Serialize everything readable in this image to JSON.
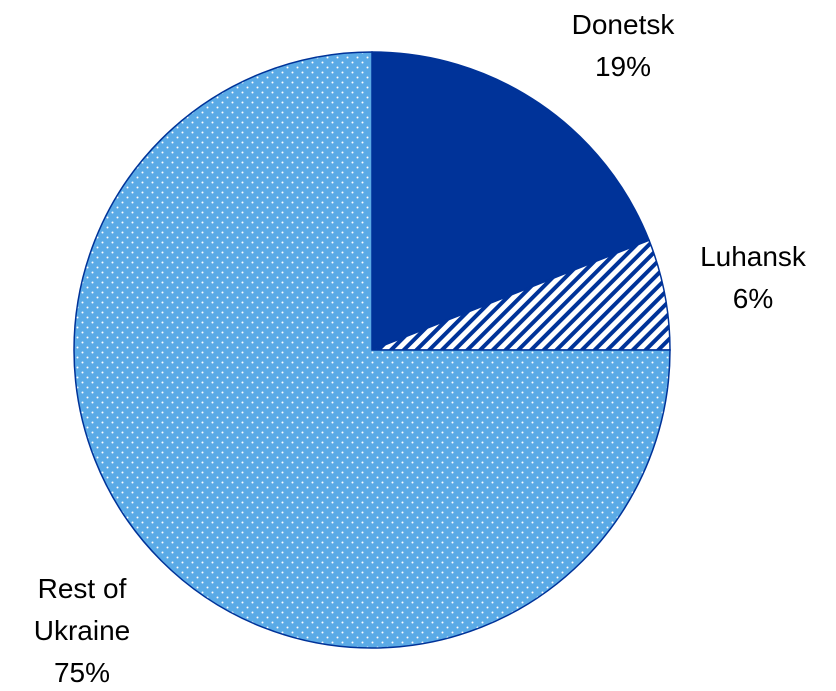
{
  "chart_data": {
    "type": "pie",
    "categories": [
      "Donetsk",
      "Luhansk",
      "Rest of Ukraine"
    ],
    "values": [
      19,
      6,
      75
    ],
    "value_labels": [
      "19%",
      "6%",
      "75%"
    ],
    "colors": [
      "#003399",
      "#003399",
      "#5aaae6"
    ],
    "patterns": [
      "solid",
      "stripes",
      "dots"
    ]
  }
}
